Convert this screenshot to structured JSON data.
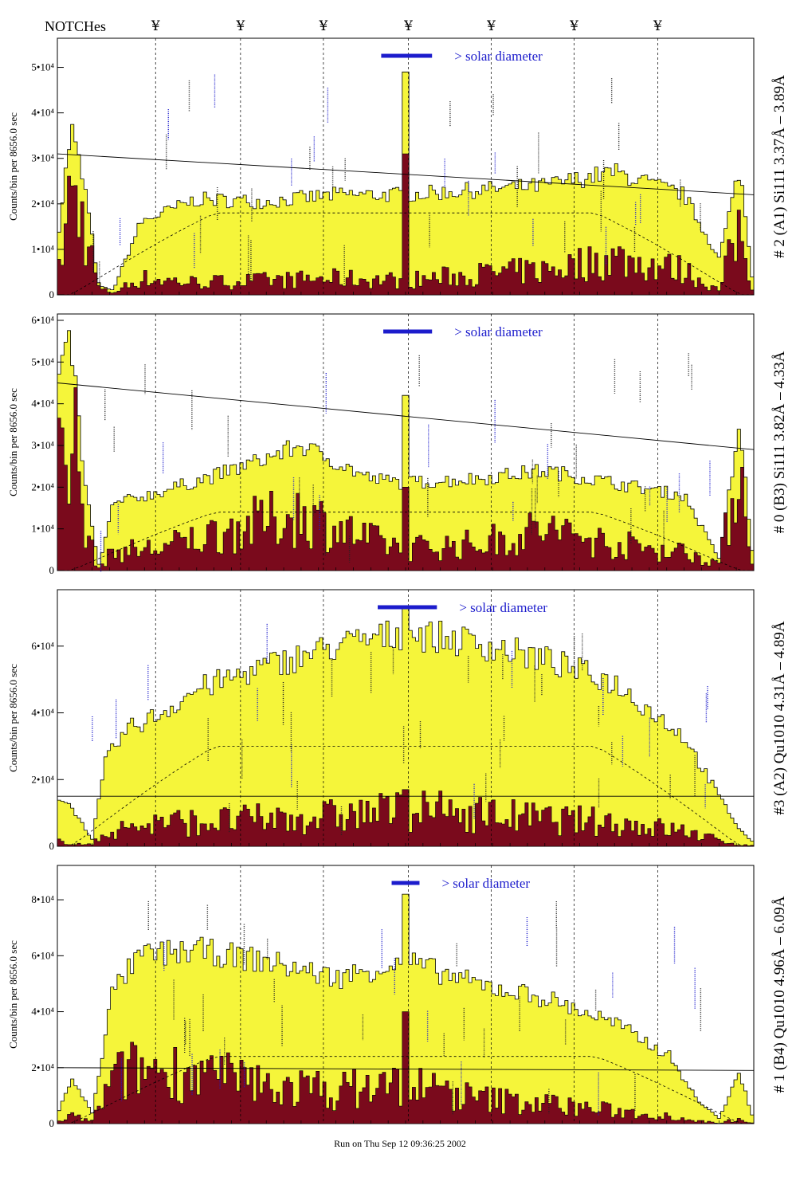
{
  "header": {
    "notches_label": "NOTCHes",
    "notch_symbol": "¥"
  },
  "footer": {
    "run_text": "Run on Thu Sep 12 09:36:25 2002"
  },
  "colors": {
    "envelope_fill": "#f5f53a",
    "core_fill": "#7a0a1c",
    "annotation": "#1c1ccc",
    "axis": "#000000"
  },
  "solar_label": "> solar diameter",
  "chart_data": [
    {
      "type": "area",
      "ylabel": "Counts/bin per   8656.0 sec",
      "right_label": "# 2 (A1) Si111  3.37Å – 3.89Å",
      "ylim": [
        0,
        55000
      ],
      "yticks": [
        0,
        10000,
        20000,
        30000,
        40000,
        50000
      ],
      "ytick_labels": [
        "0",
        "1•10⁴",
        "2•10⁴",
        "3•10⁴",
        "4•10⁴",
        "5•10⁴"
      ],
      "x": [
        0,
        0.02,
        0.04,
        0.06,
        0.08,
        0.12,
        0.2,
        0.3,
        0.4,
        0.5,
        0.6,
        0.7,
        0.8,
        0.9,
        0.95,
        0.98,
        1
      ],
      "series": [
        {
          "values": [
            12000,
            37000,
            23000,
            2000,
            1000,
            16000,
            21000,
            20500,
            22000,
            22000,
            23000,
            24000,
            27000,
            22000,
            8000,
            28000,
            1000
          ]
        },
        {
          "values": [
            3000,
            26000,
            16000,
            1500,
            500,
            4000,
            3000,
            3500,
            4000,
            3500,
            5000,
            6000,
            9000,
            6000,
            1000,
            17000,
            500
          ]
        }
      ],
      "spike": {
        "x": 0.5,
        "envelope_peak": 49000,
        "core_peak": 31000
      },
      "trend": [
        31000,
        22000
      ],
      "dashed_level": 18000
    },
    {
      "type": "area",
      "ylabel": "Counts/bin per   8656.0 sec",
      "right_label": "# 0 (B3) Si111  3.82Å – 4.33Å",
      "ylim": [
        0,
        60000
      ],
      "yticks": [
        0,
        10000,
        20000,
        30000,
        40000,
        50000,
        60000
      ],
      "ytick_labels": [
        "0",
        "1•10⁴",
        "2•10⁴",
        "3•10⁴",
        "4•10⁴",
        "5•10⁴",
        "6•10⁴"
      ],
      "x": [
        0,
        0.02,
        0.04,
        0.06,
        0.08,
        0.15,
        0.25,
        0.35,
        0.45,
        0.5,
        0.6,
        0.7,
        0.8,
        0.9,
        0.95,
        0.98,
        1
      ],
      "series": [
        {
          "values": [
            45000,
            55000,
            20000,
            1000,
            16000,
            19000,
            24000,
            30000,
            22000,
            21000,
            22000,
            24000,
            21000,
            18000,
            3000,
            35000,
            1000
          ]
        },
        {
          "values": [
            30000,
            43000,
            10000,
            500,
            5000,
            6000,
            11000,
            15000,
            8000,
            6000,
            7000,
            11000,
            7000,
            5000,
            2000,
            29000,
            500
          ]
        }
      ],
      "spike": {
        "x": 0.5,
        "envelope_peak": 42000,
        "core_peak": 20000
      },
      "trend": [
        45000,
        29000
      ],
      "dashed_level": 14000
    },
    {
      "type": "area",
      "ylabel": "Counts/bin per   8656.0 sec",
      "right_label": "#3 (A2) Qu1010  4.31Å – 4.89Å",
      "ylim": [
        0,
        75000
      ],
      "yticks": [
        0,
        20000,
        40000,
        60000
      ],
      "ytick_labels": [
        "0",
        "2•10⁴",
        "4•10⁴",
        "6•10⁴"
      ],
      "x": [
        0,
        0.02,
        0.05,
        0.07,
        0.1,
        0.15,
        0.2,
        0.3,
        0.4,
        0.5,
        0.6,
        0.7,
        0.8,
        0.9,
        0.95,
        0.98,
        1
      ],
      "series": [
        {
          "values": [
            15000,
            12000,
            2000,
            26000,
            35000,
            40000,
            47000,
            54000,
            60000,
            64000,
            61000,
            56000,
            49000,
            33000,
            15000,
            5000,
            1000
          ]
        },
        {
          "values": [
            2000,
            1000,
            500,
            5000,
            6000,
            8000,
            8000,
            9000,
            10000,
            12000,
            11000,
            9000,
            8000,
            5000,
            2000,
            500,
            200
          ]
        }
      ],
      "spike": {
        "x": 0.5,
        "envelope_peak": 72000,
        "core_peak": 17000
      },
      "trend": [
        15000,
        15000
      ],
      "dashed_level": 30000
    },
    {
      "type": "area",
      "ylabel": "Counts/bin per   8656.0 sec",
      "right_label": "# 1 (B4) Qu1010 4.96Å – 6.09Å",
      "ylim": [
        0,
        90000
      ],
      "yticks": [
        0,
        20000,
        40000,
        60000,
        80000
      ],
      "ytick_labels": [
        "0",
        "2•10⁴",
        "4•10⁴",
        "6•10⁴",
        "8•10⁴"
      ],
      "x": [
        0,
        0.02,
        0.05,
        0.08,
        0.12,
        0.2,
        0.3,
        0.4,
        0.5,
        0.6,
        0.7,
        0.8,
        0.88,
        0.92,
        0.95,
        0.98,
        1
      ],
      "series": [
        {
          "values": [
            3000,
            16000,
            4000,
            48000,
            60000,
            62000,
            58000,
            52000,
            58000,
            50000,
            45000,
            36000,
            24000,
            8000,
            2000,
            18000,
            1000
          ]
        },
        {
          "values": [
            500,
            3000,
            1000,
            18000,
            22000,
            20000,
            15000,
            13000,
            16000,
            10000,
            8000,
            5000,
            3000,
            1000,
            200,
            2000,
            100
          ]
        }
      ],
      "spike": {
        "x": 0.5,
        "envelope_peak": 82000,
        "core_peak": 40000
      },
      "trend": [
        20000,
        19000
      ],
      "dashed_level": 24000
    }
  ]
}
